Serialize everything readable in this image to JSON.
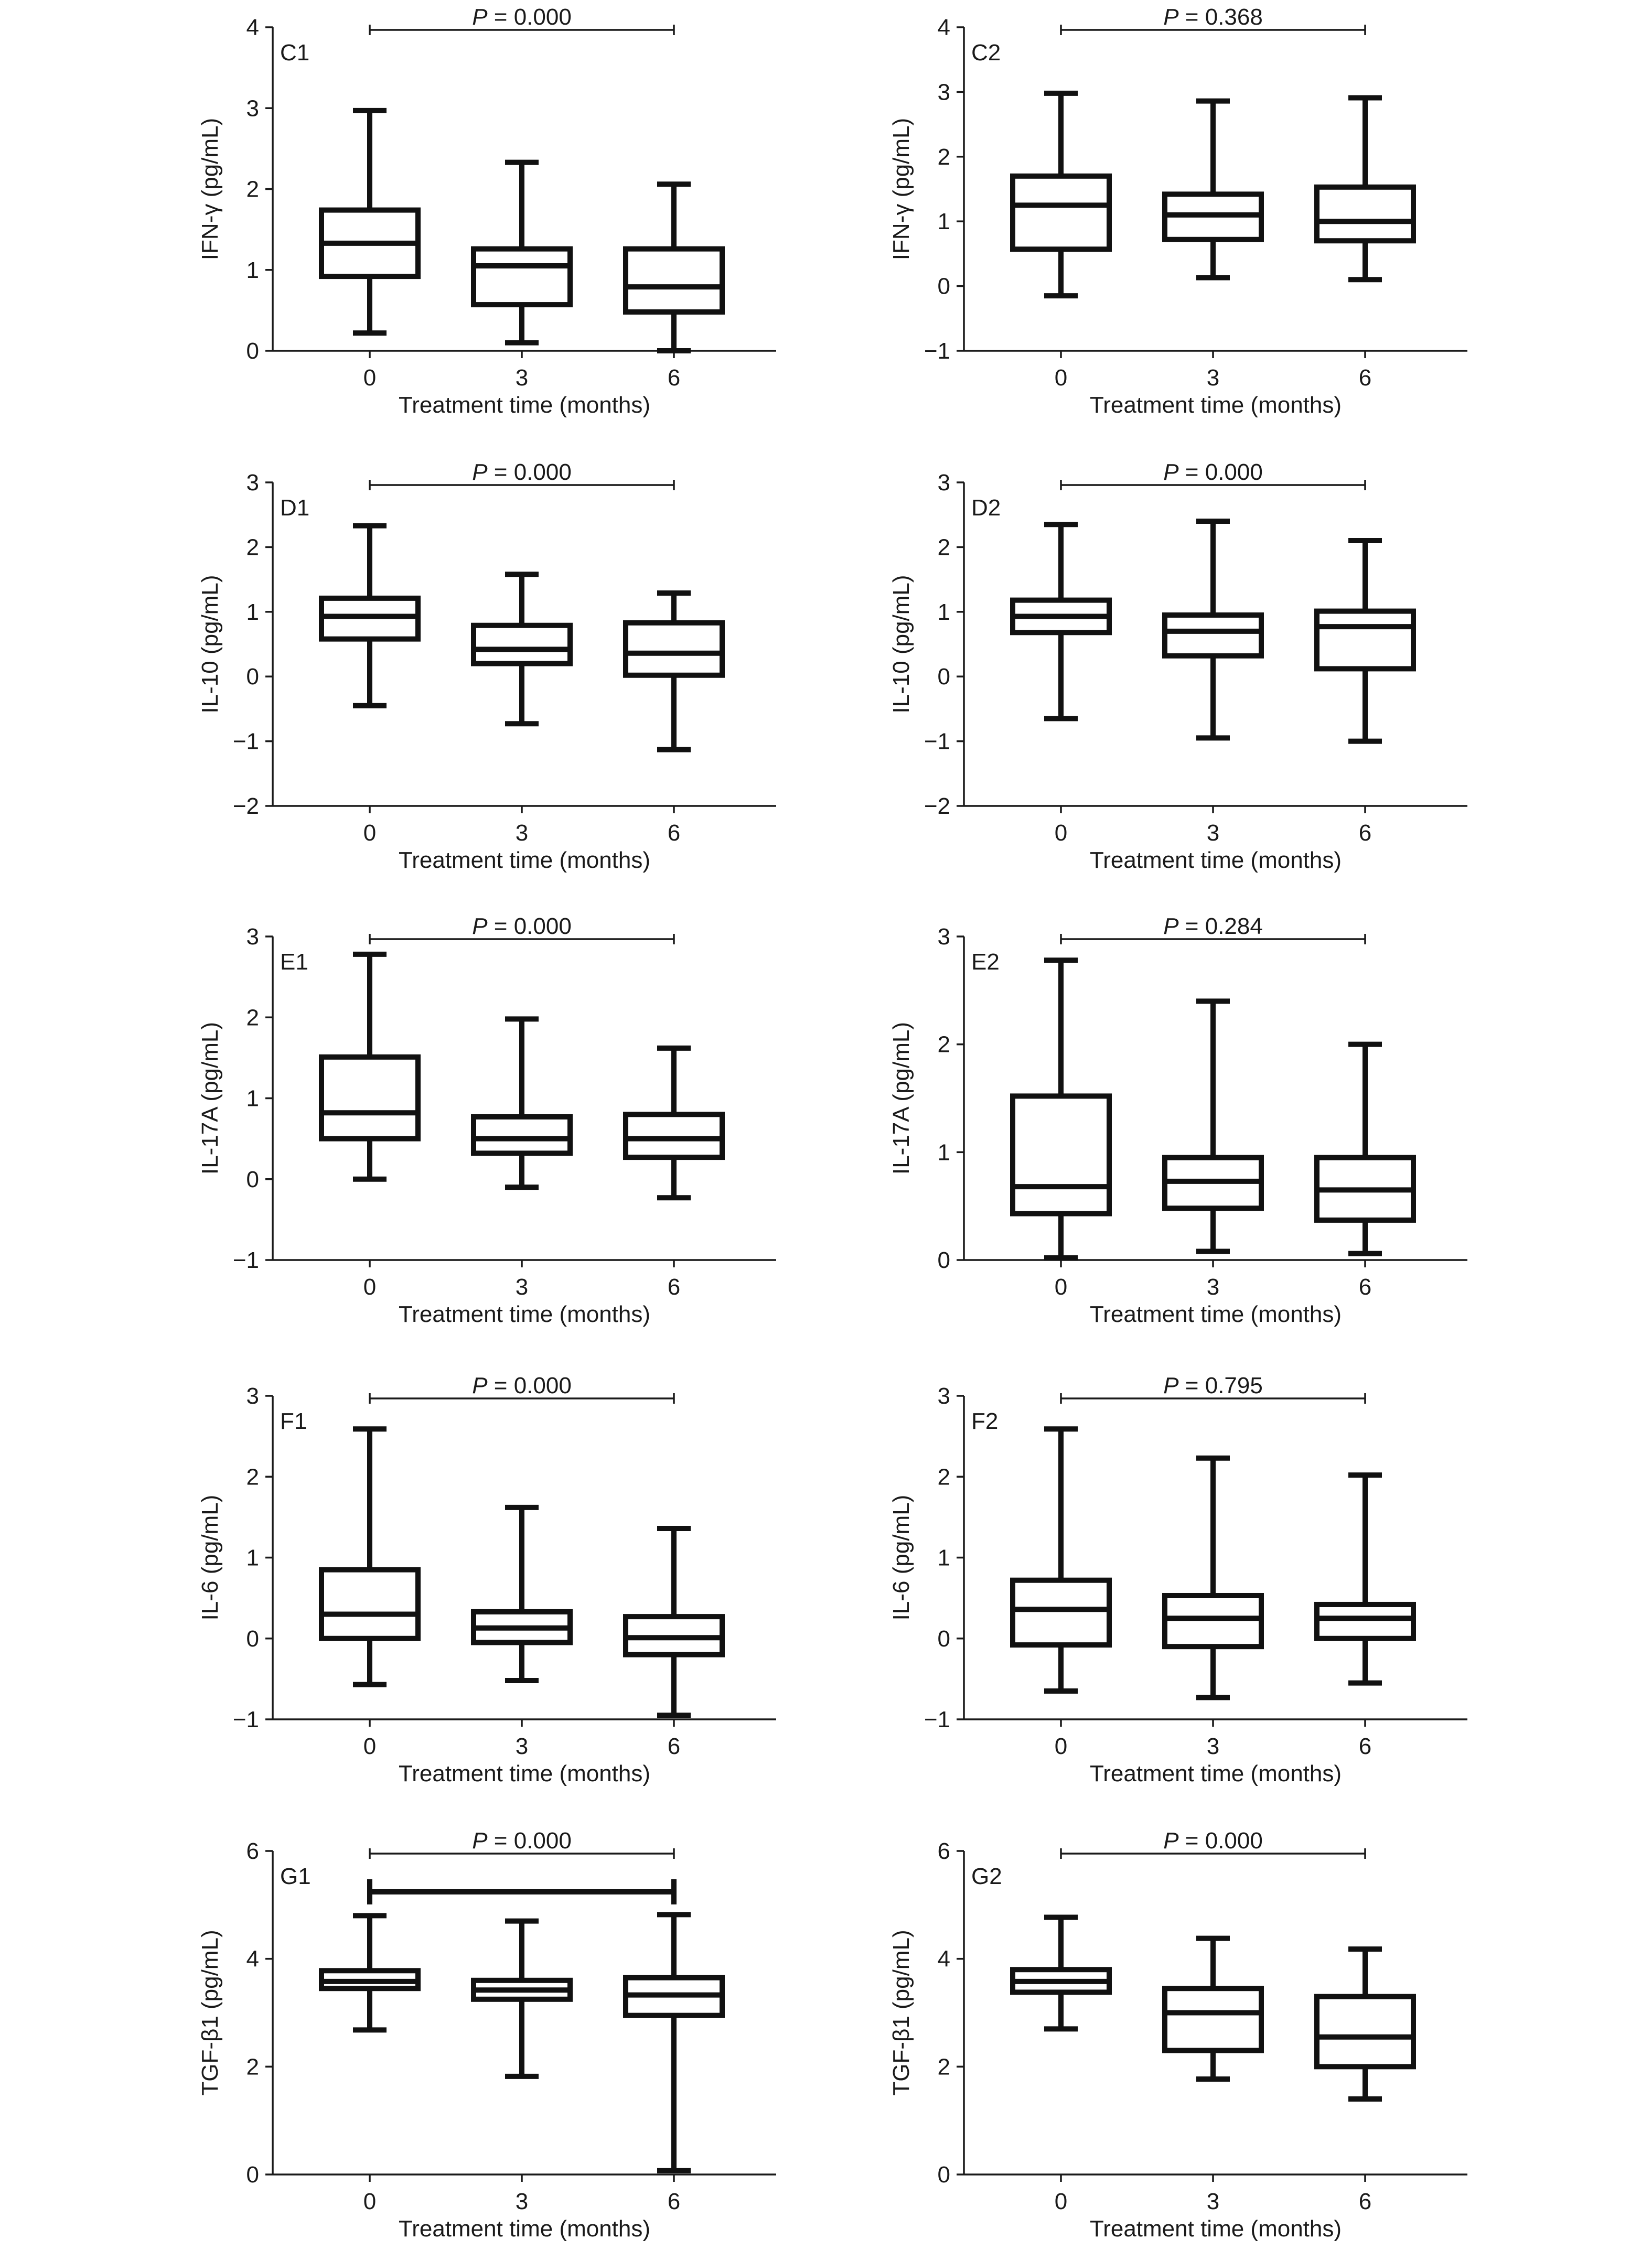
{
  "chart_data": [
    {
      "type": "box",
      "panel_label": "C1",
      "ylabel": "IFN-γ (pg/mL)",
      "xlabel": "Treatment time (months)",
      "ylim": [
        0,
        4
      ],
      "yticks": [
        0,
        1,
        2,
        3,
        4
      ],
      "categories": [
        "0",
        "3",
        "6"
      ],
      "boxes": [
        {
          "min": 0.22,
          "q1": 0.92,
          "median": 1.33,
          "q3": 1.74,
          "max": 2.97
        },
        {
          "min": 0.1,
          "q1": 0.57,
          "median": 1.05,
          "q3": 1.26,
          "max": 2.33
        },
        {
          "min": 0.0,
          "q1": 0.48,
          "median": 0.79,
          "q3": 1.26,
          "max": 2.06
        }
      ],
      "annotation": {
        "prefix": "P",
        "text": " = 0.000",
        "from": 0,
        "to": 2,
        "bold_bracket": false
      }
    },
    {
      "type": "box",
      "panel_label": "C2",
      "ylabel": "IFN-γ (pg/mL)",
      "xlabel": "Treatment time (months)",
      "ylim": [
        -1,
        4
      ],
      "yticks": [
        -1,
        0,
        1,
        2,
        3,
        4
      ],
      "categories": [
        "0",
        "3",
        "6"
      ],
      "boxes": [
        {
          "min": -0.15,
          "q1": 0.57,
          "median": 1.25,
          "q3": 1.7,
          "max": 2.98
        },
        {
          "min": 0.13,
          "q1": 0.72,
          "median": 1.1,
          "q3": 1.42,
          "max": 2.86
        },
        {
          "min": 0.1,
          "q1": 0.7,
          "median": 1.0,
          "q3": 1.53,
          "max": 2.91
        }
      ],
      "annotation": {
        "prefix": "P",
        "text": " = 0.368",
        "from": 0,
        "to": 2,
        "bold_bracket": false
      }
    },
    {
      "type": "box",
      "panel_label": "D1",
      "ylabel": "IL-10 (pg/mL)",
      "xlabel": "Treatment time (months)",
      "ylim": [
        -2,
        3
      ],
      "yticks": [
        -2,
        -1,
        0,
        1,
        2,
        3
      ],
      "categories": [
        "0",
        "3",
        "6"
      ],
      "boxes": [
        {
          "min": -0.45,
          "q1": 0.58,
          "median": 0.93,
          "q3": 1.21,
          "max": 2.33
        },
        {
          "min": -0.73,
          "q1": 0.2,
          "median": 0.42,
          "q3": 0.79,
          "max": 1.58
        },
        {
          "min": -1.13,
          "q1": 0.02,
          "median": 0.36,
          "q3": 0.83,
          "max": 1.29
        }
      ],
      "annotation": {
        "prefix": "P",
        "text": " = 0.000",
        "from": 0,
        "to": 2,
        "bold_bracket": false
      }
    },
    {
      "type": "box",
      "panel_label": "D2",
      "ylabel": "IL-10 (pg/mL)",
      "xlabel": "Treatment time (months)",
      "ylim": [
        -2,
        3
      ],
      "yticks": [
        -2,
        -1,
        0,
        1,
        2,
        3
      ],
      "categories": [
        "0",
        "3",
        "6"
      ],
      "boxes": [
        {
          "min": -0.65,
          "q1": 0.68,
          "median": 0.93,
          "q3": 1.18,
          "max": 2.35
        },
        {
          "min": -0.95,
          "q1": 0.32,
          "median": 0.7,
          "q3": 0.95,
          "max": 2.4
        },
        {
          "min": -1.0,
          "q1": 0.12,
          "median": 0.77,
          "q3": 1.01,
          "max": 2.1
        }
      ],
      "annotation": {
        "prefix": "P",
        "text": " = 0.000",
        "from": 0,
        "to": 2,
        "bold_bracket": false
      }
    },
    {
      "type": "box",
      "panel_label": "E1",
      "ylabel": "IL-17A (pg/mL)",
      "xlabel": "Treatment time (months)",
      "ylim": [
        -1,
        3
      ],
      "yticks": [
        -1,
        0,
        1,
        2,
        3
      ],
      "categories": [
        "0",
        "3",
        "6"
      ],
      "boxes": [
        {
          "min": 0.0,
          "q1": 0.5,
          "median": 0.82,
          "q3": 1.51,
          "max": 2.78
        },
        {
          "min": -0.1,
          "q1": 0.32,
          "median": 0.5,
          "q3": 0.77,
          "max": 1.98
        },
        {
          "min": -0.23,
          "q1": 0.27,
          "median": 0.5,
          "q3": 0.8,
          "max": 1.62
        }
      ],
      "annotation": {
        "prefix": "P",
        "text": " = 0.000",
        "from": 0,
        "to": 2,
        "bold_bracket": false
      }
    },
    {
      "type": "box",
      "panel_label": "E2",
      "ylabel": "IL-17A (pg/mL)",
      "xlabel": "Treatment time (months)",
      "ylim": [
        0,
        3
      ],
      "yticks": [
        0,
        1,
        2,
        3
      ],
      "categories": [
        "0",
        "3",
        "6"
      ],
      "boxes": [
        {
          "min": 0.02,
          "q1": 0.43,
          "median": 0.68,
          "q3": 1.52,
          "max": 2.78
        },
        {
          "min": 0.08,
          "q1": 0.48,
          "median": 0.73,
          "q3": 0.95,
          "max": 2.4
        },
        {
          "min": 0.06,
          "q1": 0.37,
          "median": 0.65,
          "q3": 0.95,
          "max": 2.0
        }
      ],
      "annotation": {
        "prefix": "P",
        "text": " = 0.284",
        "from": 0,
        "to": 2,
        "bold_bracket": false
      }
    },
    {
      "type": "box",
      "panel_label": "F1",
      "ylabel": "IL-6 (pg/mL)",
      "xlabel": "Treatment time (months)",
      "ylim": [
        -1,
        3
      ],
      "yticks": [
        -1,
        0,
        1,
        2,
        3
      ],
      "categories": [
        "0",
        "3",
        "6"
      ],
      "boxes": [
        {
          "min": -0.57,
          "q1": 0.0,
          "median": 0.3,
          "q3": 0.85,
          "max": 2.59
        },
        {
          "min": -0.52,
          "q1": -0.05,
          "median": 0.13,
          "q3": 0.33,
          "max": 1.62
        },
        {
          "min": -0.95,
          "q1": -0.2,
          "median": 0.01,
          "q3": 0.27,
          "max": 1.36
        }
      ],
      "annotation": {
        "prefix": "P",
        "text": " = 0.000",
        "from": 0,
        "to": 2,
        "bold_bracket": false
      }
    },
    {
      "type": "box",
      "panel_label": "F2",
      "ylabel": "IL-6 (pg/mL)",
      "xlabel": "Treatment time (months)",
      "ylim": [
        -1,
        3
      ],
      "yticks": [
        -1,
        0,
        1,
        2,
        3
      ],
      "categories": [
        "0",
        "3",
        "6"
      ],
      "boxes": [
        {
          "min": -0.65,
          "q1": -0.08,
          "median": 0.36,
          "q3": 0.72,
          "max": 2.59
        },
        {
          "min": -0.73,
          "q1": -0.1,
          "median": 0.25,
          "q3": 0.53,
          "max": 2.23
        },
        {
          "min": -0.55,
          "q1": 0.0,
          "median": 0.25,
          "q3": 0.42,
          "max": 2.02
        }
      ],
      "annotation": {
        "prefix": "P",
        "text": " = 0.795",
        "from": 0,
        "to": 2,
        "bold_bracket": false
      }
    },
    {
      "type": "box",
      "panel_label": "G1",
      "ylabel": "TGF-β1 (pg/mL)",
      "xlabel": "Treatment time (months)",
      "ylim": [
        0,
        6
      ],
      "yticks": [
        0,
        2,
        4,
        6
      ],
      "categories": [
        "0",
        "3",
        "6"
      ],
      "boxes": [
        {
          "min": 2.68,
          "q1": 3.45,
          "median": 3.58,
          "q3": 3.78,
          "max": 4.8
        },
        {
          "min": 1.82,
          "q1": 3.25,
          "median": 3.42,
          "q3": 3.6,
          "max": 4.7
        },
        {
          "min": 0.07,
          "q1": 2.95,
          "median": 3.33,
          "q3": 3.65,
          "max": 4.82
        }
      ],
      "annotation": {
        "prefix": "P",
        "text": " = 0.000",
        "from": 0,
        "to": 2,
        "bold_bracket": true
      }
    },
    {
      "type": "box",
      "panel_label": "G2",
      "ylabel": "TGF-β1 (pg/mL)",
      "xlabel": "Treatment time (months)",
      "ylim": [
        0,
        6
      ],
      "yticks": [
        0,
        2,
        4,
        6
      ],
      "categories": [
        "0",
        "3",
        "6"
      ],
      "boxes": [
        {
          "min": 2.7,
          "q1": 3.38,
          "median": 3.58,
          "q3": 3.8,
          "max": 4.77
        },
        {
          "min": 1.77,
          "q1": 2.3,
          "median": 3.0,
          "q3": 3.45,
          "max": 4.38
        },
        {
          "min": 1.4,
          "q1": 2.0,
          "median": 2.55,
          "q3": 3.3,
          "max": 4.18
        }
      ],
      "annotation": {
        "prefix": "P",
        "text": " = 0.000",
        "from": 0,
        "to": 2,
        "bold_bracket": false
      }
    }
  ]
}
